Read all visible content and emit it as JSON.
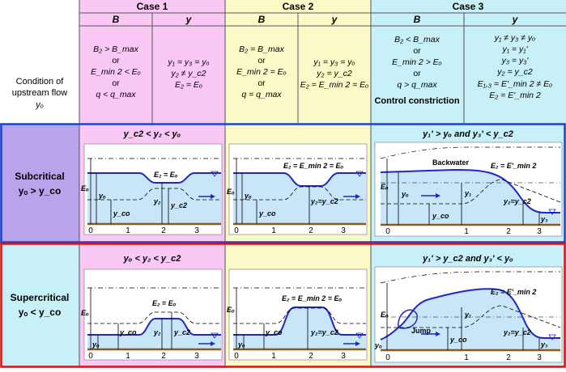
{
  "header": {
    "case1": "Case 1",
    "case2": "Case 2",
    "case3": "Case 3",
    "col_B": "B",
    "col_y": "y"
  },
  "upstream": {
    "line1": "Condition of",
    "line2": "upstream flow",
    "line3": "yₒ"
  },
  "cond": {
    "c1B": [
      "B₂ > B_max",
      "or",
      "E_min 2 < Eₒ",
      "or",
      "q < q_max"
    ],
    "c1y": [
      "y₁ = y₃ = yₒ",
      "y₂ ≠ y_c2",
      "E₂ = Eₒ"
    ],
    "c2B": [
      "B₂ = B_max",
      "or",
      "E_min 2 = Eₒ",
      "or",
      "q = q_max"
    ],
    "c2y": [
      "y₁ = y₃ = yₒ",
      "y₂ = y_c2",
      "E₂ = E_min 2 = Eₒ"
    ],
    "c3B": [
      "B₂ < B_max",
      "or",
      "E_min 2 > Eₒ",
      "or",
      "q > q_max",
      "Control constriction"
    ],
    "c3y": [
      "y₁ ≠ y₃ ≠ yₒ",
      "y₁ = y₁'",
      "y₃ = y₃'",
      "y₂ = y_c2",
      "E₁,₃ = E'_min 2 ≠ Eₒ",
      "E₂ = E'_min 2"
    ]
  },
  "rows": {
    "sub_title": "Subcritical",
    "sub_cond": "yₒ > y_co",
    "sup_title": "Supercritical",
    "sup_cond": "yₒ < y_co"
  },
  "titles": {
    "sub12": "y_c2 < y₂ < yₒ",
    "sub3": "y₁' > yₒ and y₃' < y_c2",
    "sup12": "yₒ < y₂ < y_c2",
    "sup3": "y₁' > y_c2 and y₃' < yₒ"
  },
  "labels": {
    "Eo": "Eₒ",
    "yo": "yₒ",
    "yco": "y_co",
    "y1": "y₁",
    "y2": "y₂",
    "y3": "y₃",
    "yc2": "y_c2",
    "y2eq": "y₂=y_c2",
    "E2Eo": "E₂ = Eₒ",
    "E2Emin": "E₂ = E_min 2 = Eₒ",
    "E2Eprime": "E₂ = E'_min 2",
    "backwater": "Backwater",
    "jump": "Jump",
    "x0": "0",
    "x1": "1",
    "x2": "2",
    "x3": "3"
  },
  "colors": {
    "case1": "#f9c8f5",
    "case2": "#fcf9c9",
    "case3": "#c8f0f8",
    "subcritical": "#b9a3ea",
    "supercritical": "#c8f0f8",
    "water": "#c8e6f8",
    "surface": "#1f27c8",
    "bed": "#8a5a1a",
    "sub_border": "#1f44cc",
    "sup_border": "#e01010"
  }
}
